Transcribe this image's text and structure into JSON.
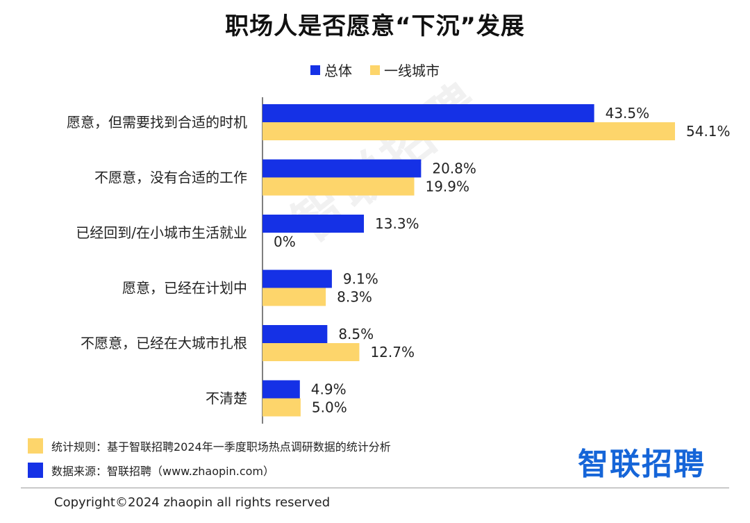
{
  "title": "职场人是否愿意“下沉”发展",
  "colors": {
    "overall": "#1531e6",
    "tier1": "#fdd56b",
    "axis": "#555555"
  },
  "watermark": "智联招聘",
  "chart_data": {
    "type": "bar",
    "orientation": "horizontal",
    "categories": [
      "愿意，但需要找到合适的时机",
      "不愿意，没有合适的工作",
      "已经回到/在小城市生活就业",
      "愿意，已经在计划中",
      "不愿意，已经在大城市扎根",
      "不清楚"
    ],
    "series": [
      {
        "name": "总体",
        "values": [
          43.5,
          20.8,
          13.3,
          9.1,
          8.5,
          4.9
        ]
      },
      {
        "name": "一线城市",
        "values": [
          54.1,
          19.9,
          0,
          8.3,
          12.7,
          5.0
        ]
      }
    ],
    "value_labels": [
      [
        "43.5%",
        "20.8%",
        "13.3%",
        "9.1%",
        "8.5%",
        "4.9%"
      ],
      [
        "54.1%",
        "19.9%",
        "0%",
        "8.3%",
        "12.7%",
        "5.0%"
      ]
    ],
    "unit": "%",
    "xlim": [
      0,
      54.1
    ],
    "grid": false,
    "legend_position": "top-center"
  },
  "footer": {
    "rule_text": "统计规则：基于智联招聘2024年一季度职场热点调研数据的统计分析",
    "source_text": "数据来源：智联招聘（www.zhaopin.com）",
    "brand": "智联招聘",
    "copyright": "Copyright©2024 zhaopin all rights reserved"
  }
}
